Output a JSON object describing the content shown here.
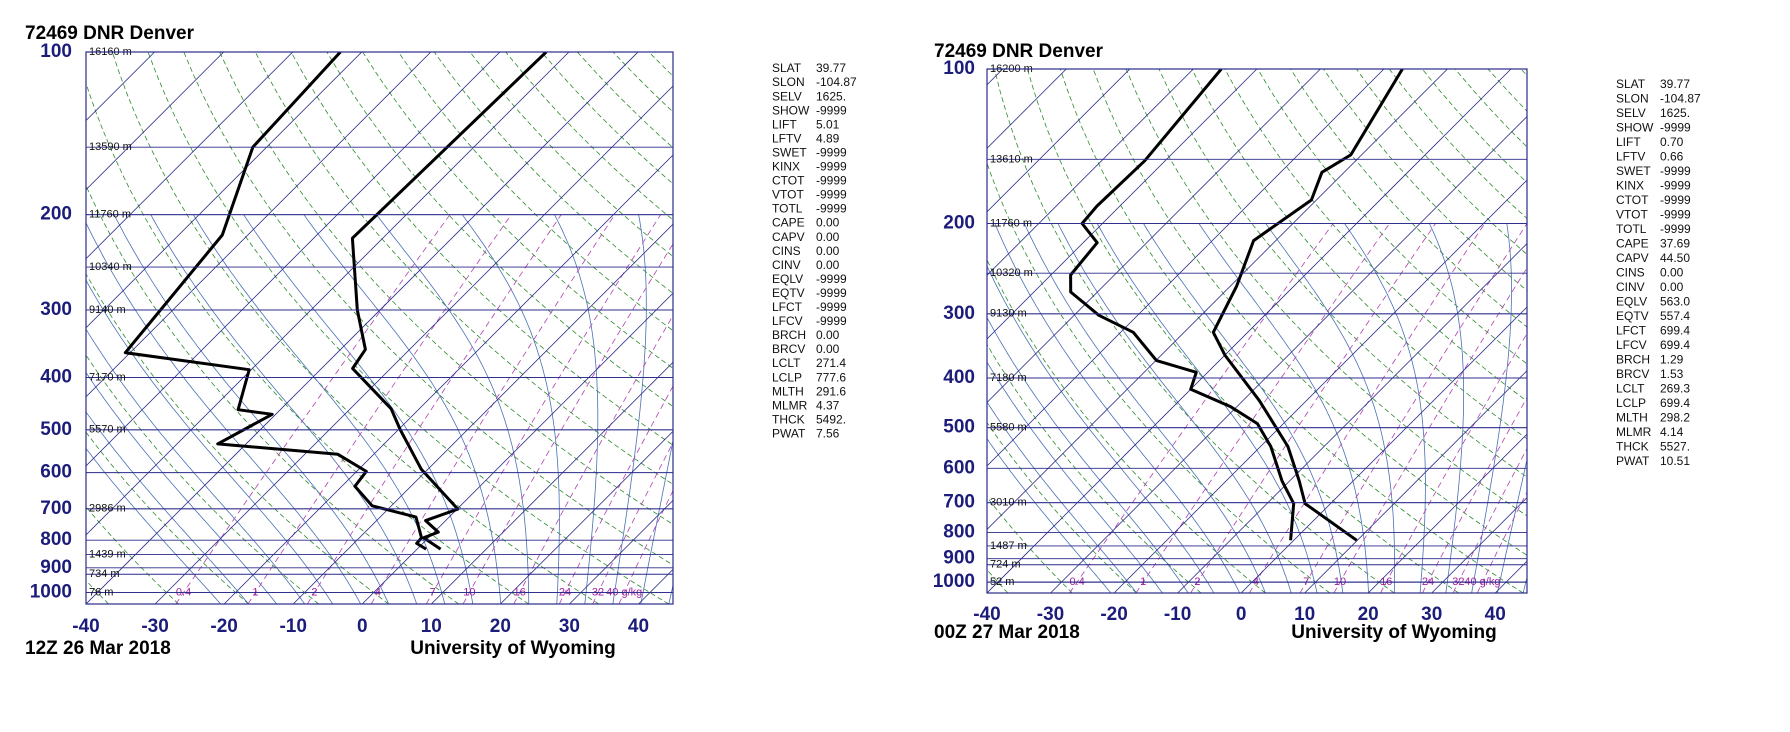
{
  "chart_data": [
    {
      "type": "skew-t",
      "title": "72469 DNR Denver",
      "date": "12Z 26 Mar 2018",
      "source": "University of Wyoming",
      "xlim": [
        -40,
        45
      ],
      "ylim": [
        1050,
        100
      ],
      "xticks": [
        -40,
        -30,
        -20,
        -10,
        0,
        10,
        20,
        30,
        40
      ],
      "yticks": [
        100,
        200,
        300,
        400,
        500,
        600,
        700,
        800,
        900,
        1000
      ],
      "height_labels": [
        {
          "value": 100,
          "label": "16160 m"
        },
        {
          "value": 150,
          "label": "13590 m"
        },
        {
          "value": 200,
          "label": "11760 m"
        },
        {
          "value": 250,
          "label": "10340 m"
        },
        {
          "value": 300,
          "label": "9140 m"
        },
        {
          "value": 400,
          "label": "7170 m"
        },
        {
          "value": 500,
          "label": "5570 m"
        },
        {
          "value": 700,
          "label": "2986 m"
        },
        {
          "value": 850,
          "label": "1439 m"
        },
        {
          "value": 925,
          "label": "734 m"
        },
        {
          "value": 1000,
          "label": "76 m"
        }
      ],
      "mixing_ratios": [
        0.4,
        1,
        2,
        4,
        7,
        10,
        16,
        24,
        32,
        {
          "value": 40,
          "label": "40 g/kg"
        }
      ],
      "series": [
        {
          "color": "#000000",
          "pressure": [
            100,
            221,
            300,
            355,
            385,
            457,
            499,
            591,
            701,
            736,
            773,
            792,
            831
          ],
          "values": [
            -53.3,
            -54.4,
            -43.3,
            -36.4,
            -35.5,
            -24.1,
            -19.8,
            -11,
            0.1,
            -2.9,
            0.6,
            -0.7,
            3.4
          ]
        },
        {
          "color": "#000000",
          "pressure": [
            100,
            150,
            218,
            360,
            387,
            459,
            468,
            531,
            555,
            597,
            636,
            691,
            725,
            792,
            811,
            831
          ],
          "values": [
            -83.1,
            -82,
            -73.7,
            -70.7,
            -50.3,
            -46.1,
            -40.5,
            -44.1,
            -25.2,
            -18.6,
            -18.1,
            -12.8,
            -4.8,
            -1.0,
            -0.9,
            1.3
          ]
        }
      ],
      "indices": [
        {
          "name": "SLAT",
          "value": "39.77"
        },
        {
          "name": "SLON",
          "value": "-104.87"
        },
        {
          "name": "SELV",
          "value": "1625."
        },
        {
          "name": "SHOW",
          "value": "-9999"
        },
        {
          "name": "LIFT",
          "value": "5.01"
        },
        {
          "name": "LFTV",
          "value": "4.89"
        },
        {
          "name": "SWET",
          "value": "-9999"
        },
        {
          "name": "KINX",
          "value": "-9999"
        },
        {
          "name": "CTOT",
          "value": "-9999"
        },
        {
          "name": "VTOT",
          "value": "-9999"
        },
        {
          "name": "TOTL",
          "value": "-9999"
        },
        {
          "name": "CAPE",
          "value": "0.00"
        },
        {
          "name": "CAPV",
          "value": "0.00"
        },
        {
          "name": "CINS",
          "value": "0.00"
        },
        {
          "name": "CINV",
          "value": "0.00"
        },
        {
          "name": "EQLV",
          "value": "-9999"
        },
        {
          "name": "EQTV",
          "value": "-9999"
        },
        {
          "name": "LFCT",
          "value": "-9999"
        },
        {
          "name": "LFCV",
          "value": "-9999"
        },
        {
          "name": "BRCH",
          "value": "0.00"
        },
        {
          "name": "BRCV",
          "value": "0.00"
        },
        {
          "name": "LCLT",
          "value": "271.4"
        },
        {
          "name": "LCLP",
          "value": "777.6"
        },
        {
          "name": "MLTH",
          "value": "291.6"
        },
        {
          "name": "MLMR",
          "value": "4.37"
        },
        {
          "name": "THCK",
          "value": "5492."
        },
        {
          "name": "PWAT",
          "value": "7.56"
        }
      ]
    },
    {
      "type": "skew-t",
      "title": "72469 DNR Denver",
      "date": "00Z 27 Mar 2018",
      "source": "University of Wyoming",
      "xlim": [
        -40,
        45
      ],
      "ylim": [
        1050,
        100
      ],
      "xticks": [
        -40,
        -30,
        -20,
        -10,
        0,
        10,
        20,
        30,
        40
      ],
      "yticks": [
        100,
        200,
        300,
        400,
        500,
        600,
        700,
        800,
        900,
        1000
      ],
      "height_labels": [
        {
          "value": 100,
          "label": "16200 m"
        },
        {
          "value": 150,
          "label": "13610 m"
        },
        {
          "value": 200,
          "label": "11760 m"
        },
        {
          "value": 250,
          "label": "10320 m"
        },
        {
          "value": 300,
          "label": "9130 m"
        },
        {
          "value": 400,
          "label": "7180 m"
        },
        {
          "value": 500,
          "label": "5580 m"
        },
        {
          "value": 700,
          "label": "3010 m"
        },
        {
          "value": 850,
          "label": "1487 m"
        },
        {
          "value": 925,
          "label": "724 m"
        },
        {
          "value": 1000,
          "label": "52 m"
        }
      ],
      "mixing_ratios": [
        0.4,
        1,
        2,
        4,
        7,
        10,
        16,
        24,
        32,
        {
          "value": 40,
          "label": "40 g/kg"
        }
      ],
      "series": [
        {
          "color": "#000000",
          "pressure": [
            100,
            147,
            159,
            180,
            216,
            265,
            326,
            361,
            443,
            544,
            635,
            703,
            829
          ],
          "values": [
            -57.1,
            -51.7,
            -53.5,
            -50.8,
            -53.5,
            -49,
            -45.4,
            -40,
            -27.4,
            -15.7,
            -8.5,
            -4,
            9.9
          ]
        },
        {
          "color": "#000000",
          "pressure": [
            100,
            151,
            185,
            200,
            218,
            252,
            272,
            302,
            326,
            370,
            390,
            421,
            455,
            491,
            544,
            635,
            703,
            829
          ],
          "values": [
            -85.6,
            -83.2,
            -83.6,
            -83.2,
            -77.8,
            -76.9,
            -74.2,
            -66.1,
            -58,
            -49.9,
            -41.8,
            -40,
            -31,
            -24.1,
            -18.4,
            -11.2,
            -5.8,
            -0.5
          ]
        }
      ],
      "indices": [
        {
          "name": "SLAT",
          "value": "39.77"
        },
        {
          "name": "SLON",
          "value": "-104.87"
        },
        {
          "name": "SELV",
          "value": "1625."
        },
        {
          "name": "SHOW",
          "value": "-9999"
        },
        {
          "name": "LIFT",
          "value": "0.70"
        },
        {
          "name": "LFTV",
          "value": "0.66"
        },
        {
          "name": "SWET",
          "value": "-9999"
        },
        {
          "name": "KINX",
          "value": "-9999"
        },
        {
          "name": "CTOT",
          "value": "-9999"
        },
        {
          "name": "VTOT",
          "value": "-9999"
        },
        {
          "name": "TOTL",
          "value": "-9999"
        },
        {
          "name": "CAPE",
          "value": "37.69"
        },
        {
          "name": "CAPV",
          "value": "44.50"
        },
        {
          "name": "CINS",
          "value": "0.00"
        },
        {
          "name": "CINV",
          "value": "0.00"
        },
        {
          "name": "EQLV",
          "value": "563.0"
        },
        {
          "name": "EQTV",
          "value": "557.4"
        },
        {
          "name": "LFCT",
          "value": "699.4"
        },
        {
          "name": "LFCV",
          "value": "699.4"
        },
        {
          "name": "BRCH",
          "value": "1.29"
        },
        {
          "name": "BRCV",
          "value": "1.53"
        },
        {
          "name": "LCLT",
          "value": "269.3"
        },
        {
          "name": "LCLP",
          "value": "699.4"
        },
        {
          "name": "MLTH",
          "value": "298.2"
        },
        {
          "name": "MLMR",
          "value": "4.14"
        },
        {
          "name": "THCK",
          "value": "5527."
        },
        {
          "name": "PWAT",
          "value": "10.51"
        }
      ]
    }
  ]
}
